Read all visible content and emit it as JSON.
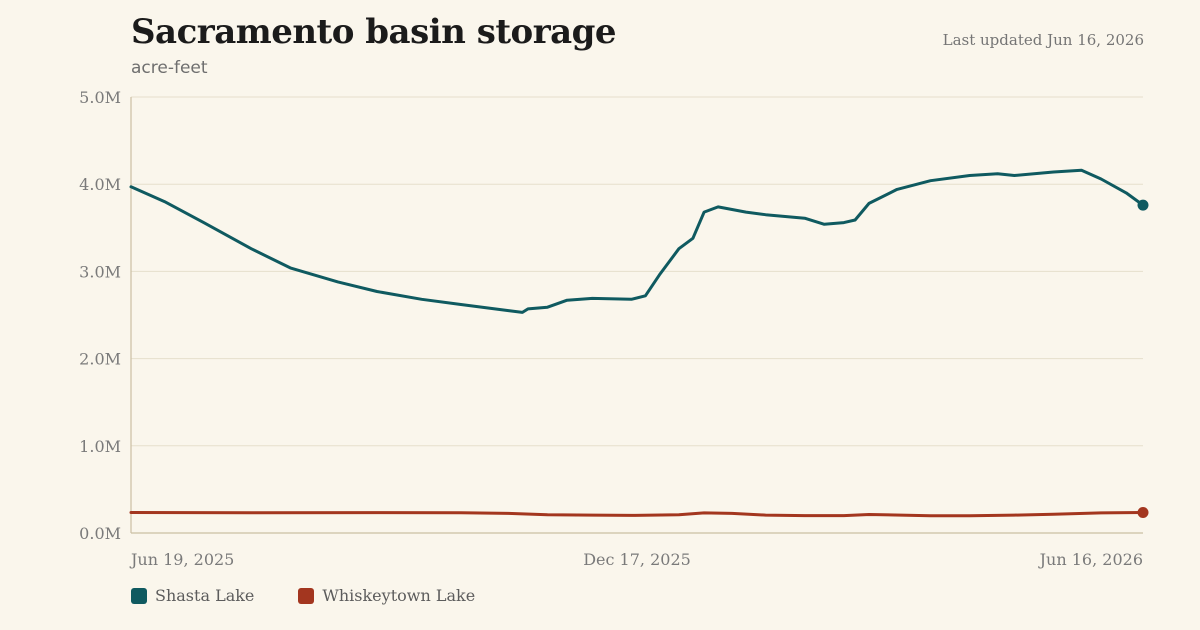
{
  "header": {
    "title": "Sacramento basin storage",
    "subtitle": "acre-feet",
    "updated": "Last updated Jun 16, 2026"
  },
  "colors": {
    "shasta": "#0f5a60",
    "whiskeytown": "#a3361f",
    "grid": "#e6dfcc",
    "axis": "#cbbfa3",
    "tick_text": "#7a7a7a"
  },
  "chart_data": {
    "type": "line",
    "title": "Sacramento basin storage",
    "ylabel": "acre-feet",
    "ylim": [
      0,
      5000000
    ],
    "yticks": [
      0,
      1000000,
      2000000,
      3000000,
      4000000,
      5000000
    ],
    "ytick_labels": [
      "0.0M",
      "1.0M",
      "2.0M",
      "3.0M",
      "4.0M",
      "5.0M"
    ],
    "xlim": [
      "2025-06-19",
      "2026-06-16"
    ],
    "xticks": [
      "2025-06-19",
      "2025-12-17",
      "2026-06-16"
    ],
    "xtick_labels": [
      "Jun 19, 2025",
      "Dec 17, 2025",
      "Jun 16, 2026"
    ],
    "grid": true,
    "legend_position": "bottom-left",
    "series": [
      {
        "name": "Shasta Lake",
        "color": "#0f5a60",
        "points": [
          [
            "2025-06-19",
            3970000
          ],
          [
            "2025-07-01",
            3800000
          ],
          [
            "2025-07-15",
            3560000
          ],
          [
            "2025-08-01",
            3260000
          ],
          [
            "2025-08-15",
            3040000
          ],
          [
            "2025-09-01",
            2880000
          ],
          [
            "2025-09-15",
            2770000
          ],
          [
            "2025-10-01",
            2680000
          ],
          [
            "2025-10-15",
            2620000
          ],
          [
            "2025-11-01",
            2550000
          ],
          [
            "2025-11-06",
            2530000
          ],
          [
            "2025-11-08",
            2570000
          ],
          [
            "2025-11-15",
            2590000
          ],
          [
            "2025-11-22",
            2670000
          ],
          [
            "2025-12-01",
            2690000
          ],
          [
            "2025-12-15",
            2680000
          ],
          [
            "2025-12-20",
            2720000
          ],
          [
            "2025-12-25",
            2960000
          ],
          [
            "2026-01-01",
            3260000
          ],
          [
            "2026-01-06",
            3380000
          ],
          [
            "2026-01-10",
            3680000
          ],
          [
            "2026-01-15",
            3740000
          ],
          [
            "2026-01-25",
            3680000
          ],
          [
            "2026-02-01",
            3650000
          ],
          [
            "2026-02-15",
            3610000
          ],
          [
            "2026-02-22",
            3540000
          ],
          [
            "2026-03-01",
            3560000
          ],
          [
            "2026-03-05",
            3590000
          ],
          [
            "2026-03-10",
            3780000
          ],
          [
            "2026-03-20",
            3940000
          ],
          [
            "2026-04-01",
            4040000
          ],
          [
            "2026-04-15",
            4100000
          ],
          [
            "2026-04-25",
            4120000
          ],
          [
            "2026-05-01",
            4100000
          ],
          [
            "2026-05-15",
            4140000
          ],
          [
            "2026-05-25",
            4160000
          ],
          [
            "2026-06-01",
            4060000
          ],
          [
            "2026-06-10",
            3900000
          ],
          [
            "2026-06-16",
            3760000
          ]
        ]
      },
      {
        "name": "Whiskeytown Lake",
        "color": "#a3361f",
        "points": [
          [
            "2025-06-19",
            235000
          ],
          [
            "2025-08-01",
            232000
          ],
          [
            "2025-09-15",
            234000
          ],
          [
            "2025-10-15",
            232000
          ],
          [
            "2025-11-01",
            225000
          ],
          [
            "2025-11-15",
            210000
          ],
          [
            "2025-12-01",
            205000
          ],
          [
            "2025-12-15",
            202000
          ],
          [
            "2026-01-01",
            210000
          ],
          [
            "2026-01-10",
            230000
          ],
          [
            "2026-01-20",
            225000
          ],
          [
            "2026-02-01",
            205000
          ],
          [
            "2026-02-15",
            200000
          ],
          [
            "2026-03-01",
            200000
          ],
          [
            "2026-03-10",
            212000
          ],
          [
            "2026-04-01",
            198000
          ],
          [
            "2026-04-15",
            197000
          ],
          [
            "2026-05-01",
            205000
          ],
          [
            "2026-05-15",
            215000
          ],
          [
            "2026-06-01",
            230000
          ],
          [
            "2026-06-16",
            235000
          ]
        ]
      }
    ]
  }
}
